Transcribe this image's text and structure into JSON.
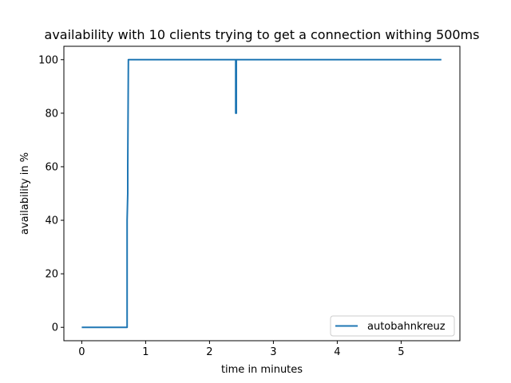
{
  "chart_data": {
    "type": "line",
    "title": "availability with 10 clients trying to get a connection withing 500ms",
    "xlabel": "time in minutes",
    "ylabel": "availability in %",
    "xlim": [
      -0.28,
      5.92
    ],
    "ylim": [
      -5,
      105
    ],
    "xticks": [
      0,
      1,
      2,
      3,
      4,
      5
    ],
    "xtick_labels": [
      "0",
      "1",
      "2",
      "3",
      "4",
      "5"
    ],
    "yticks": [
      0,
      20,
      40,
      60,
      80,
      100
    ],
    "ytick_labels": [
      "0",
      "20",
      "40",
      "60",
      "80",
      "100"
    ],
    "grid": false,
    "legend_position": "lower-right",
    "series": [
      {
        "name": "autobahnkreuz",
        "color": "#1f77b4",
        "x": [
          0,
          0.7,
          0.71,
          0.71,
          0.72,
          0.72,
          0.73,
          0.74,
          2.4,
          2.41,
          2.41,
          2.42,
          2.42,
          5.63
        ],
        "y": [
          0,
          0,
          0,
          40,
          50,
          60,
          100,
          100,
          100,
          100,
          80,
          80,
          100,
          100
        ]
      }
    ]
  }
}
